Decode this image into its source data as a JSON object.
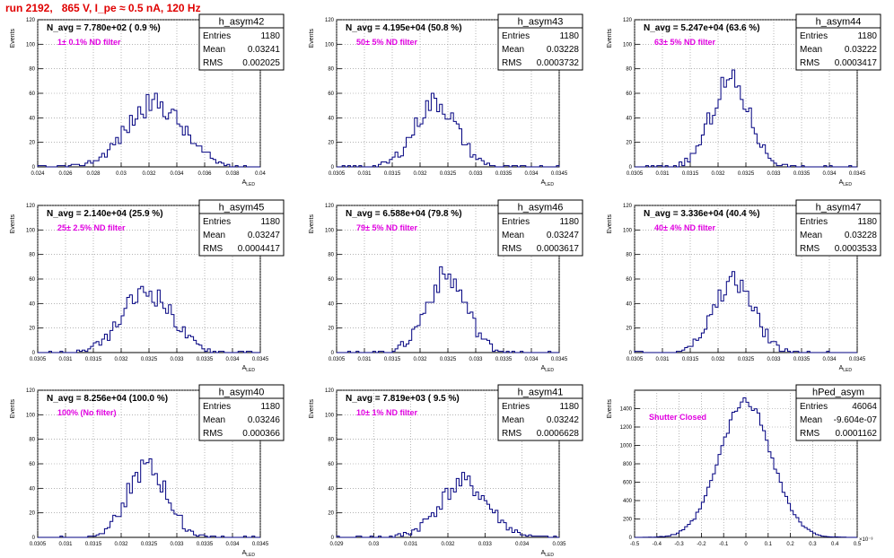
{
  "title": "run 2192,   865 V, I_pe ≈ 0.5 nA, 120 Hz",
  "chart_data": [
    {
      "type": "histogram",
      "name": "h_asym42",
      "navg_label": "N_avg = 7.780e+02 ( 0.9 %)",
      "filter_label": "1± 0.1% ND filter",
      "stats": {
        "entries": "1180",
        "mean": "0.03241",
        "rms": "0.002025"
      },
      "xlim": [
        0.024,
        0.04
      ],
      "ylim": [
        0,
        120
      ],
      "xticks": [
        "0.024",
        "0.026",
        "0.028",
        "0.03",
        "0.032",
        "0.034",
        "0.036",
        "0.038",
        "0.04"
      ],
      "yticks": [
        "0",
        "20",
        "40",
        "60",
        "80",
        "100",
        "120"
      ],
      "xlabel": "A_LED",
      "ylabel": "Events",
      "mean_value": 0.03241,
      "rms_value": 0.002025,
      "peak": 52,
      "seed": 42
    },
    {
      "type": "histogram",
      "name": "h_asym43",
      "navg_label": "N_avg = 4.195e+04 (50.8 %)",
      "filter_label": "50± 5% ND filter",
      "stats": {
        "entries": "1180",
        "mean": "0.03228",
        "rms": "0.0003732"
      },
      "xlim": [
        0.0305,
        0.0345
      ],
      "ylim": [
        0,
        120
      ],
      "xticks": [
        "0.0305",
        "0.031",
        "0.0315",
        "0.032",
        "0.0325",
        "0.033",
        "0.0335",
        "0.034",
        "0.0345"
      ],
      "yticks": [
        "0",
        "20",
        "40",
        "60",
        "80",
        "100",
        "120"
      ],
      "xlabel": "A_LED",
      "ylabel": "Events",
      "mean_value": 0.03228,
      "rms_value": 0.0003732,
      "peak": 53,
      "seed": 43
    },
    {
      "type": "histogram",
      "name": "h_asym44",
      "navg_label": "N_avg = 5.247e+04 (63.6 %)",
      "filter_label": "63± 5% ND filter",
      "stats": {
        "entries": "1180",
        "mean": "0.03222",
        "rms": "0.0003417"
      },
      "xlim": [
        0.0305,
        0.0345
      ],
      "ylim": [
        0,
        120
      ],
      "xticks": [
        "0.0305",
        "0.031",
        "0.0315",
        "0.032",
        "0.0325",
        "0.033",
        "0.0335",
        "0.034",
        "0.0345"
      ],
      "yticks": [
        "0",
        "20",
        "40",
        "60",
        "80",
        "100",
        "120"
      ],
      "xlabel": "A_LED",
      "ylabel": "Events",
      "mean_value": 0.03222,
      "rms_value": 0.0003417,
      "peak": 70,
      "seed": 44
    },
    {
      "type": "histogram",
      "name": "h_asym45",
      "navg_label": "N_avg = 2.140e+04 (25.9 %)",
      "filter_label": "25± 2.5% ND filter",
      "stats": {
        "entries": "1180",
        "mean": "0.03247",
        "rms": "0.0004417"
      },
      "xlim": [
        0.0305,
        0.0345
      ],
      "ylim": [
        0,
        120
      ],
      "xticks": [
        "0.0305",
        "0.031",
        "0.0315",
        "0.032",
        "0.0325",
        "0.033",
        "0.0335",
        "0.034",
        "0.0345"
      ],
      "yticks": [
        "0",
        "20",
        "40",
        "60",
        "80",
        "100",
        "120"
      ],
      "xlabel": "A_LED",
      "ylabel": "Events",
      "mean_value": 0.03247,
      "rms_value": 0.0004417,
      "peak": 50,
      "seed": 45
    },
    {
      "type": "histogram",
      "name": "h_asym46",
      "navg_label": "N_avg = 6.588e+04 (79.8 %)",
      "filter_label": "79± 5% ND filter",
      "stats": {
        "entries": "1180",
        "mean": "0.03247",
        "rms": "0.0003617"
      },
      "xlim": [
        0.0305,
        0.0345
      ],
      "ylim": [
        0,
        120
      ],
      "xticks": [
        "0.0305",
        "0.031",
        "0.0315",
        "0.032",
        "0.0325",
        "0.033",
        "0.0335",
        "0.034",
        "0.0345"
      ],
      "yticks": [
        "0",
        "20",
        "40",
        "60",
        "80",
        "100",
        "120"
      ],
      "xlabel": "A_LED",
      "ylabel": "Events",
      "mean_value": 0.03247,
      "rms_value": 0.0003617,
      "peak": 62,
      "seed": 46
    },
    {
      "type": "histogram",
      "name": "h_asym47",
      "navg_label": "N_avg = 3.336e+04 (40.4 %)",
      "filter_label": "40± 4% ND filter",
      "stats": {
        "entries": "1180",
        "mean": "0.03228",
        "rms": "0.0003533"
      },
      "xlim": [
        0.0305,
        0.0345
      ],
      "ylim": [
        0,
        120
      ],
      "xticks": [
        "0.0305",
        "0.031",
        "0.0315",
        "0.032",
        "0.0325",
        "0.033",
        "0.0335",
        "0.034",
        "0.0345"
      ],
      "yticks": [
        "0",
        "20",
        "40",
        "60",
        "80",
        "100",
        "120"
      ],
      "xlabel": "A_LED",
      "ylabel": "Events",
      "mean_value": 0.03228,
      "rms_value": 0.0003533,
      "peak": 58,
      "seed": 47
    },
    {
      "type": "histogram",
      "name": "h_asym40",
      "navg_label": "N_avg = 8.256e+04 (100.0 %)",
      "filter_label": "100% (No filter)",
      "stats": {
        "entries": "1180",
        "mean": "0.03246",
        "rms": "0.000366"
      },
      "xlim": [
        0.0305,
        0.0345
      ],
      "ylim": [
        0,
        120
      ],
      "xticks": [
        "0.0305",
        "0.031",
        "0.0315",
        "0.032",
        "0.0325",
        "0.033",
        "0.0335",
        "0.034",
        "0.0345"
      ],
      "yticks": [
        "0",
        "20",
        "40",
        "60",
        "80",
        "100",
        "120"
      ],
      "xlabel": "A_LED",
      "ylabel": "Events",
      "mean_value": 0.03246,
      "rms_value": 0.000366,
      "peak": 56,
      "seed": 40
    },
    {
      "type": "histogram",
      "name": "h_asym41",
      "navg_label": "N_avg = 7.819e+03 ( 9.5 %)",
      "filter_label": "10± 1% ND filter",
      "stats": {
        "entries": "1180",
        "mean": "0.03242",
        "rms": "0.0006628"
      },
      "xlim": [
        0.029,
        0.035
      ],
      "ylim": [
        0,
        120
      ],
      "xticks": [
        "0.029",
        "0.03",
        "0.031",
        "0.032",
        "0.033",
        "0.034",
        "0.035"
      ],
      "yticks": [
        "0",
        "20",
        "40",
        "60",
        "80",
        "100",
        "120"
      ],
      "xlabel": "A_LED",
      "ylabel": "Events",
      "mean_value": 0.03242,
      "rms_value": 0.0006628,
      "peak": 44,
      "seed": 41
    },
    {
      "type": "histogram",
      "name": "hPed_asym",
      "navg_label": "",
      "filter_label": "Shutter Closed",
      "stats": {
        "entries": "46064",
        "mean": "-9.604e-07",
        "rms": "0.0001162"
      },
      "xlim": [
        -0.5,
        0.5
      ],
      "ylim": [
        0,
        1600
      ],
      "xticks": [
        "-0.5",
        "-0.4",
        "-0.3",
        "-0.2",
        "-0.1",
        "0",
        "0.1",
        "0.2",
        "0.3",
        "0.4",
        "0.5"
      ],
      "yticks": [
        "0",
        "200",
        "400",
        "600",
        "800",
        "1000",
        "1200",
        "1400"
      ],
      "xlabel": "",
      "ylabel": "Events",
      "x_exponent": "×10⁻³",
      "mean_value": -0.00096,
      "rms_value": 0.1162,
      "peak": 1480,
      "seed": 99
    }
  ]
}
